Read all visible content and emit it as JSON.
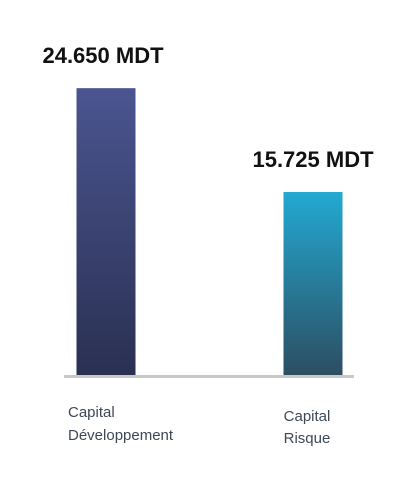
{
  "chart_data": {
    "type": "bar",
    "categories": [
      [
        "Capital",
        "Développement"
      ],
      [
        "Capital",
        "Risque"
      ]
    ],
    "values": [
      24650,
      15725
    ],
    "value_labels": [
      "24.650 MDT",
      "15.725 MDT"
    ],
    "unit": "MDT",
    "ylim": [
      0,
      27500
    ],
    "grid": false,
    "legend": "none",
    "bar_colors": [
      {
        "top": "#4b5590",
        "bottom": "#2a3052"
      },
      {
        "top": "#23a9d2",
        "bottom": "#2c4e62"
      }
    ],
    "axis_color": "#c8c8c8",
    "label_color": "#3e4758"
  }
}
